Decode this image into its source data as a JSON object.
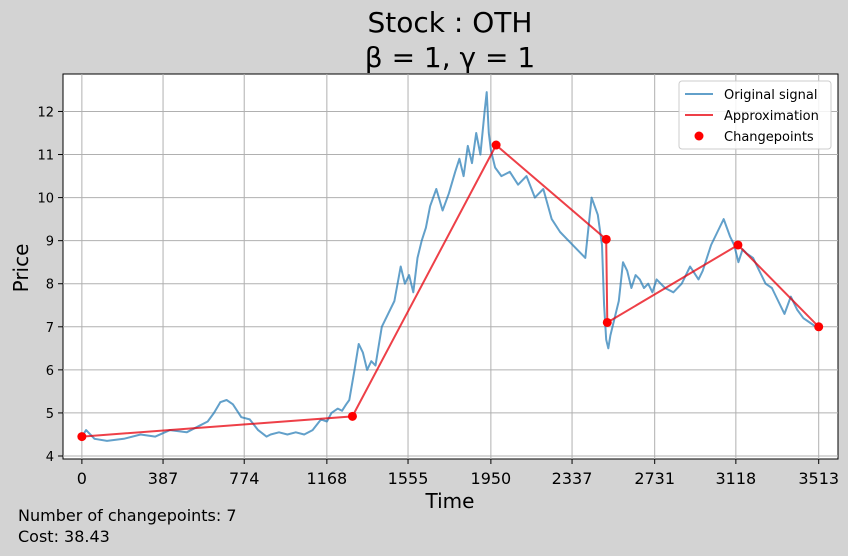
{
  "chart_data": {
    "type": "line",
    "title_line1": "Stock : OTH",
    "title_line2": "β = 1, γ = 1",
    "xlabel": "Time",
    "ylabel": "Price",
    "xlim": [
      -90,
      3605
    ],
    "ylim": [
      3.93,
      12.87
    ],
    "x_ticks": [
      0,
      387,
      774,
      1168,
      1555,
      1950,
      2337,
      2731,
      3118,
      3513
    ],
    "y_ticks": [
      4,
      5,
      6,
      7,
      8,
      9,
      10,
      11,
      12
    ],
    "grid": true,
    "legend_position": "top-right",
    "legend": [
      "Original signal",
      "Approximation",
      "Changepoints"
    ],
    "colors": {
      "signal": "#1f77b4",
      "approx": "#e8000b",
      "changepoints": "#ff0000"
    },
    "series": [
      {
        "name": "Original signal",
        "x": [
          0,
          20,
          60,
          120,
          200,
          280,
          350,
          420,
          500,
          560,
          600,
          630,
          660,
          690,
          720,
          760,
          800,
          840,
          880,
          900,
          940,
          980,
          1020,
          1060,
          1100,
          1140,
          1168,
          1190,
          1220,
          1240,
          1260,
          1275,
          1300,
          1320,
          1340,
          1360,
          1380,
          1400,
          1430,
          1460,
          1490,
          1520,
          1540,
          1560,
          1580,
          1600,
          1620,
          1640,
          1660,
          1690,
          1720,
          1750,
          1780,
          1800,
          1820,
          1840,
          1860,
          1880,
          1900,
          1920,
          1930,
          1940,
          1950,
          1970,
          2000,
          2040,
          2080,
          2120,
          2160,
          2200,
          2240,
          2280,
          2320,
          2360,
          2400,
          2430,
          2460,
          2480,
          2490,
          2500,
          2510,
          2520,
          2540,
          2560,
          2580,
          2600,
          2620,
          2640,
          2660,
          2680,
          2700,
          2720,
          2740,
          2780,
          2820,
          2860,
          2900,
          2940,
          2960,
          2980,
          3000,
          3030,
          3060,
          3090,
          3110,
          3130,
          3150,
          3170,
          3200,
          3230,
          3260,
          3290,
          3320,
          3350,
          3380,
          3410,
          3440,
          3470,
          3500,
          3513
        ],
        "values": [
          4.45,
          4.6,
          4.4,
          4.35,
          4.4,
          4.5,
          4.45,
          4.6,
          4.55,
          4.7,
          4.8,
          5.0,
          5.25,
          5.3,
          5.2,
          4.9,
          4.85,
          4.6,
          4.45,
          4.5,
          4.55,
          4.5,
          4.55,
          4.5,
          4.6,
          4.85,
          4.8,
          5.0,
          5.1,
          5.05,
          5.2,
          5.3,
          6.0,
          6.6,
          6.4,
          6.0,
          6.2,
          6.1,
          7.0,
          7.3,
          7.6,
          8.4,
          8.0,
          8.2,
          7.8,
          8.6,
          9.0,
          9.3,
          9.8,
          10.2,
          9.7,
          10.1,
          10.6,
          10.9,
          10.5,
          11.2,
          10.8,
          11.5,
          11.0,
          12.0,
          12.45,
          11.5,
          11.1,
          10.7,
          10.5,
          10.6,
          10.3,
          10.5,
          10.0,
          10.2,
          9.5,
          9.2,
          9.0,
          8.8,
          8.6,
          10.0,
          9.6,
          8.9,
          7.5,
          6.7,
          6.5,
          6.8,
          7.2,
          7.6,
          8.5,
          8.3,
          7.9,
          8.2,
          8.1,
          7.9,
          8.0,
          7.8,
          8.1,
          7.9,
          7.8,
          8.0,
          8.4,
          8.1,
          8.3,
          8.6,
          8.9,
          9.2,
          9.5,
          9.1,
          8.9,
          8.5,
          8.8,
          8.7,
          8.6,
          8.3,
          8.0,
          7.9,
          7.6,
          7.3,
          7.7,
          7.4,
          7.2,
          7.1,
          7.0,
          7.0
        ]
      },
      {
        "name": "Approximation",
        "x": [
          0,
          1290,
          1975,
          2500,
          2505,
          3128,
          3513
        ],
        "values": [
          4.45,
          4.92,
          11.22,
          9.03,
          7.1,
          8.9,
          7.0
        ]
      },
      {
        "name": "Changepoints",
        "x": [
          0,
          1290,
          1975,
          2500,
          2505,
          3128,
          3513
        ],
        "values": [
          4.45,
          4.92,
          11.22,
          9.03,
          7.1,
          8.9,
          7.0
        ]
      }
    ]
  },
  "footer": {
    "changepoints_text": "Number of changepoints: 7",
    "cost_text": "Cost: 38.43"
  }
}
